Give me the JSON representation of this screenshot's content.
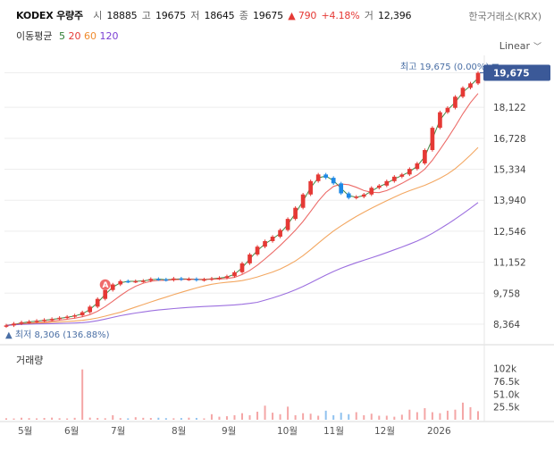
{
  "header": {
    "name": "KODEX 우량주",
    "open_label": "시",
    "open": "18885",
    "high_label": "고",
    "high": "19675",
    "low_label": "저",
    "low": "18645",
    "close_label": "종",
    "close": "19675",
    "change": "▲ 790",
    "change_pct": "+4.18%",
    "volume_label": "거",
    "volume": "12,396",
    "exchange": "한국거래소(KRX)"
  },
  "ma": {
    "title": "이동평균",
    "items": [
      {
        "label": "5",
        "color": "#2e7d32"
      },
      {
        "label": "20",
        "color": "#e53935"
      },
      {
        "label": "60",
        "color": "#ef8a2c"
      },
      {
        "label": "120",
        "color": "#7b3fd4"
      }
    ]
  },
  "scale_button": "Linear",
  "annotations": {
    "high_text": "최고 19,675 (0.00%) ▼",
    "low_text": "▲ 최저 8,306 (136.88%)",
    "current_price": "19,675",
    "event_marker": "A"
  },
  "volume_title": "거래량",
  "colors": {
    "up": "#e53935",
    "down": "#1e88e5",
    "price_tag": "#3b5998",
    "vol_up": "#f4a6a6",
    "vol_down": "#90c2ef"
  },
  "chart_data": [
    {
      "type": "candlestick",
      "price_axis_ticks": [
        19675,
        18122,
        16728,
        15334,
        13940,
        12546,
        11152,
        9758,
        8364
      ],
      "ylim": [
        8000,
        20300
      ],
      "months": [
        "5월",
        "6월",
        "7월",
        "8월",
        "9월",
        "10월",
        "11월",
        "12월",
        "2026"
      ],
      "series": [
        {
          "name": "종가",
          "values": [
            8306,
            8390,
            8450,
            8480,
            8520,
            8560,
            8600,
            8650,
            8700,
            8760,
            8900,
            9150,
            9500,
            9900,
            10150,
            10300,
            10280,
            10300,
            10320,
            10400,
            10380,
            10350,
            10420,
            10380,
            10400,
            10350,
            10380,
            10420,
            10450,
            10520,
            10700,
            11100,
            11500,
            11850,
            12100,
            12300,
            12600,
            13100,
            13600,
            14200,
            14800,
            15100,
            14950,
            14700,
            14250,
            14050,
            14100,
            14200,
            14500,
            14600,
            14800,
            15000,
            15100,
            15350,
            15600,
            16200,
            17200,
            17900,
            18100,
            18600,
            19000,
            19200,
            19675
          ]
        },
        {
          "name": "MA5"
        },
        {
          "name": "MA20"
        },
        {
          "name": "MA60"
        },
        {
          "name": "MA120"
        }
      ]
    },
    {
      "type": "bar",
      "title": "거래량",
      "volume_axis_ticks": [
        "102k",
        "76.5k",
        "51.0k",
        "25.5k"
      ],
      "ylim": [
        0,
        110000
      ],
      "values": [
        3000,
        2500,
        4000,
        3200,
        2800,
        3500,
        4200,
        3000,
        2600,
        3800,
        100000,
        4200,
        3600,
        3000,
        9000,
        3200,
        2800,
        5000,
        3800,
        3500,
        4000,
        3200,
        2900,
        3400,
        4100,
        3600,
        2700,
        11000,
        6000,
        7000,
        9000,
        13000,
        9000,
        16000,
        28000,
        14000,
        11000,
        26000,
        9000,
        13000,
        12000,
        8000,
        18000,
        9000,
        14000,
        11000,
        15000,
        9000,
        12000,
        8000,
        8000,
        6000,
        10000,
        20000,
        15000,
        23000,
        15000,
        13000,
        18000,
        20000,
        34000,
        25000,
        17000
      ]
    }
  ]
}
